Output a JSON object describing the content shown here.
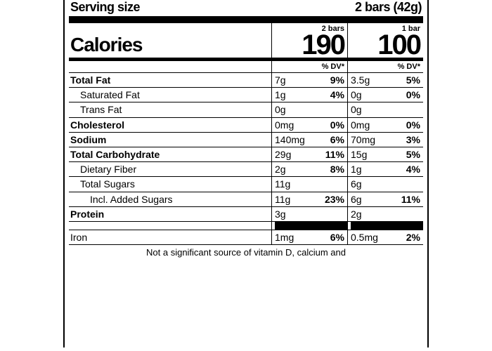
{
  "serving": {
    "label": "Serving size",
    "value": "2 bars (42g)"
  },
  "cols": {
    "a": "2 bars",
    "b": "1 bar"
  },
  "calories": {
    "label": "Calories",
    "a": "190",
    "b": "100"
  },
  "dv_label": "% DV*",
  "rows": [
    {
      "name": "Total Fat",
      "bold": true,
      "ind": 0,
      "a_amt": "7g",
      "a_pct": "9%",
      "b_amt": "3.5g",
      "b_pct": "5%"
    },
    {
      "name": "Saturated Fat",
      "bold": false,
      "ind": 1,
      "a_amt": "1g",
      "a_pct": "4%",
      "b_amt": "0g",
      "b_pct": "0%"
    },
    {
      "name": "Trans Fat",
      "bold": false,
      "ind": 1,
      "a_amt": "0g",
      "a_pct": "",
      "b_amt": "0g",
      "b_pct": ""
    },
    {
      "name": "Cholesterol",
      "bold": true,
      "ind": 0,
      "a_amt": "0mg",
      "a_pct": "0%",
      "b_amt": "0mg",
      "b_pct": "0%"
    },
    {
      "name": "Sodium",
      "bold": true,
      "ind": 0,
      "a_amt": "140mg",
      "a_pct": "6%",
      "b_amt": "70mg",
      "b_pct": "3%"
    },
    {
      "name": "Total Carbohydrate",
      "bold": true,
      "ind": 0,
      "a_amt": "29g",
      "a_pct": "11%",
      "b_amt": "15g",
      "b_pct": "5%"
    },
    {
      "name": "Dietary Fiber",
      "bold": false,
      "ind": 1,
      "a_amt": "2g",
      "a_pct": "8%",
      "b_amt": "1g",
      "b_pct": "4%"
    },
    {
      "name": "Total Sugars",
      "bold": false,
      "ind": 1,
      "a_amt": "11g",
      "a_pct": "",
      "b_amt": "6g",
      "b_pct": ""
    },
    {
      "name": "Incl. Added Sugars",
      "bold": false,
      "ind": 2,
      "a_amt": "11g",
      "a_pct": "23%",
      "b_amt": "6g",
      "b_pct": "11%"
    },
    {
      "name": "Protein",
      "bold": true,
      "ind": 0,
      "a_amt": "3g",
      "a_pct": "",
      "b_amt": "2g",
      "b_pct": ""
    }
  ],
  "minerals": [
    {
      "name": "Iron",
      "a_amt": "1mg",
      "a_pct": "6%",
      "b_amt": "0.5mg",
      "b_pct": "2%"
    }
  ],
  "footnote": "Not a significant source of vitamin D, calcium and"
}
